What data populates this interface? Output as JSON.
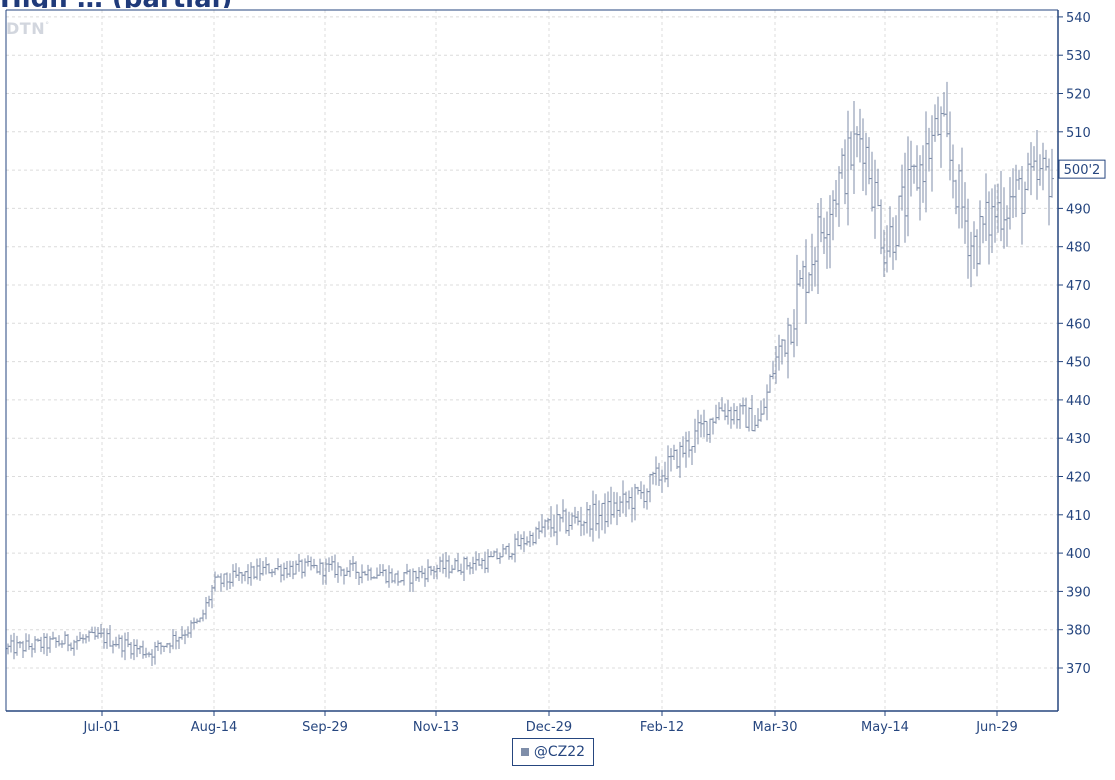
{
  "header": {
    "title_partial": "High … (partial)"
  },
  "watermark": {
    "text": "DTN",
    "mark": "°"
  },
  "legend": {
    "label": "@CZ22",
    "color": "#7f8ea9"
  },
  "last_price": {
    "label": "500'2",
    "value": 500.25
  },
  "colors": {
    "bars": "#7f8ea9",
    "axis": "#26467f",
    "grid": "#dcdcdc",
    "labels": "#26467f"
  },
  "chart_data": {
    "type": "ohlc-bar",
    "series_name": "@CZ22",
    "x": [
      "Jun-15",
      "Jul-01",
      "Jul-15",
      "Aug-01",
      "Aug-14",
      "Sep-01",
      "Sep-29",
      "Oct-15",
      "Nov-01",
      "Nov-13",
      "Dec-01",
      "Dec-29",
      "Jan-15",
      "Feb-01",
      "Feb-12",
      "Mar-01",
      "Mar-15",
      "Mar-30",
      "Apr-15",
      "May-01",
      "May-14",
      "Jun-01",
      "Jun-15",
      "Jun-29",
      "Jul-12"
    ],
    "y": [
      375,
      378,
      374,
      382,
      392,
      396,
      396,
      395,
      393,
      396,
      398,
      407,
      410,
      415,
      426,
      438,
      434,
      450,
      492,
      510,
      480,
      512,
      480,
      490,
      500
    ],
    "x_tick_labels": [
      "Jul-01",
      "Aug-14",
      "Sep-29",
      "Nov-13",
      "Dec-29",
      "Feb-12",
      "Mar-30",
      "May-14",
      "Jun-29"
    ],
    "y_ticks": [
      370,
      380,
      390,
      400,
      410,
      420,
      430,
      440,
      450,
      460,
      470,
      480,
      490,
      500,
      510,
      520,
      530,
      540
    ],
    "ylim": [
      360,
      541
    ],
    "grid": true,
    "legend_position": "bottom-center"
  }
}
